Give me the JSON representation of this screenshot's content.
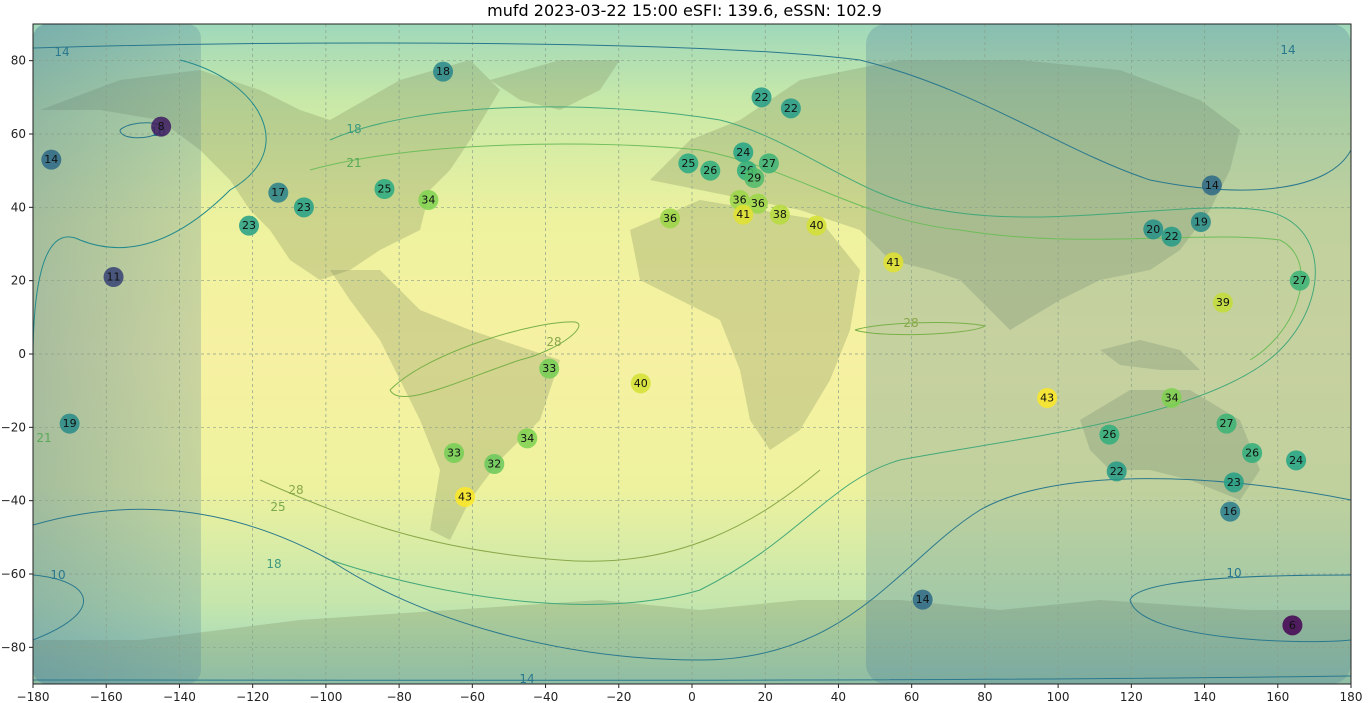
{
  "title": "mufd 2023-03-22 15:00 eSFI: 139.6, eSSN: 102.9",
  "x_ticks": [
    "−180",
    "−160",
    "−140",
    "−120",
    "−100",
    "−80",
    "−60",
    "−40",
    "−20",
    "0",
    "20",
    "40",
    "60",
    "80",
    "100",
    "120",
    "140",
    "160",
    "180"
  ],
  "y_ticks": [
    "80",
    "60",
    "40",
    "20",
    "0",
    "−20",
    "−40",
    "−60",
    "−80"
  ],
  "chart_data": {
    "type": "map-contour",
    "xlim": [
      -180,
      180
    ],
    "ylim": [
      -90,
      90
    ],
    "grid": true,
    "night_region": [
      "lon < -134",
      "lon > 48"
    ],
    "colormap": [
      "#440154",
      "#2a788e",
      "#22a884",
      "#7ad151",
      "#fde725"
    ],
    "value_range": [
      6,
      43
    ],
    "contour_levels": [
      "10",
      "14",
      "18",
      "21",
      "25",
      "28"
    ],
    "stations": [
      {
        "lon": -145,
        "lat": 62,
        "value": 8
      },
      {
        "lon": -175,
        "lat": 53,
        "value": 14
      },
      {
        "lon": -68,
        "lat": 77,
        "value": 18
      },
      {
        "lon": -113,
        "lat": 44,
        "value": 17
      },
      {
        "lon": -106,
        "lat": 40,
        "value": 23
      },
      {
        "lon": -84,
        "lat": 45,
        "value": 25
      },
      {
        "lon": -72,
        "lat": 42,
        "value": 34
      },
      {
        "lon": -121,
        "lat": 35,
        "value": 23
      },
      {
        "lon": -158,
        "lat": 21,
        "value": 11
      },
      {
        "lon": -170,
        "lat": -19,
        "value": 19
      },
      {
        "lon": -39,
        "lat": -4,
        "value": 33
      },
      {
        "lon": -14,
        "lat": -8,
        "value": 40
      },
      {
        "lon": -45,
        "lat": -23,
        "value": 34
      },
      {
        "lon": -65,
        "lat": -27,
        "value": 33
      },
      {
        "lon": -54,
        "lat": -30,
        "value": 32
      },
      {
        "lon": -62,
        "lat": -39,
        "value": 43
      },
      {
        "lon": 19,
        "lat": 70,
        "value": 22
      },
      {
        "lon": 27,
        "lat": 67,
        "value": 22
      },
      {
        "lon": -1,
        "lat": 52,
        "value": 25
      },
      {
        "lon": 5,
        "lat": 50,
        "value": 26
      },
      {
        "lon": 14,
        "lat": 55,
        "value": 24
      },
      {
        "lon": 21,
        "lat": 52,
        "value": 27
      },
      {
        "lon": 15,
        "lat": 50,
        "value": 26
      },
      {
        "lon": 17,
        "lat": 48,
        "value": 29
      },
      {
        "lon": -6,
        "lat": 37,
        "value": 36
      },
      {
        "lon": 13,
        "lat": 42,
        "value": 36
      },
      {
        "lon": 18,
        "lat": 41,
        "value": 36
      },
      {
        "lon": 14,
        "lat": 38,
        "value": 41
      },
      {
        "lon": 24,
        "lat": 38,
        "value": 38
      },
      {
        "lon": 34,
        "lat": 35,
        "value": 40
      },
      {
        "lon": 55,
        "lat": 25,
        "value": 41
      },
      {
        "lon": 142,
        "lat": 46,
        "value": 14
      },
      {
        "lon": 126,
        "lat": 34,
        "value": 20
      },
      {
        "lon": 131,
        "lat": 32,
        "value": 22
      },
      {
        "lon": 139,
        "lat": 36,
        "value": 19
      },
      {
        "lon": 166,
        "lat": 20,
        "value": 27
      },
      {
        "lon": 145,
        "lat": 14,
        "value": 39
      },
      {
        "lon": 97,
        "lat": -12,
        "value": 43
      },
      {
        "lon": 131,
        "lat": -12,
        "value": 34
      },
      {
        "lon": 146,
        "lat": -19,
        "value": 27
      },
      {
        "lon": 114,
        "lat": -22,
        "value": 26
      },
      {
        "lon": 116,
        "lat": -32,
        "value": 22
      },
      {
        "lon": 153,
        "lat": -27,
        "value": 26
      },
      {
        "lon": 165,
        "lat": -29,
        "value": 24
      },
      {
        "lon": 148,
        "lat": -35,
        "value": 23
      },
      {
        "lon": 147,
        "lat": -43,
        "value": 16
      },
      {
        "lon": 63,
        "lat": -67,
        "value": 14
      },
      {
        "lon": 164,
        "lat": -74,
        "value": 6
      }
    ]
  }
}
